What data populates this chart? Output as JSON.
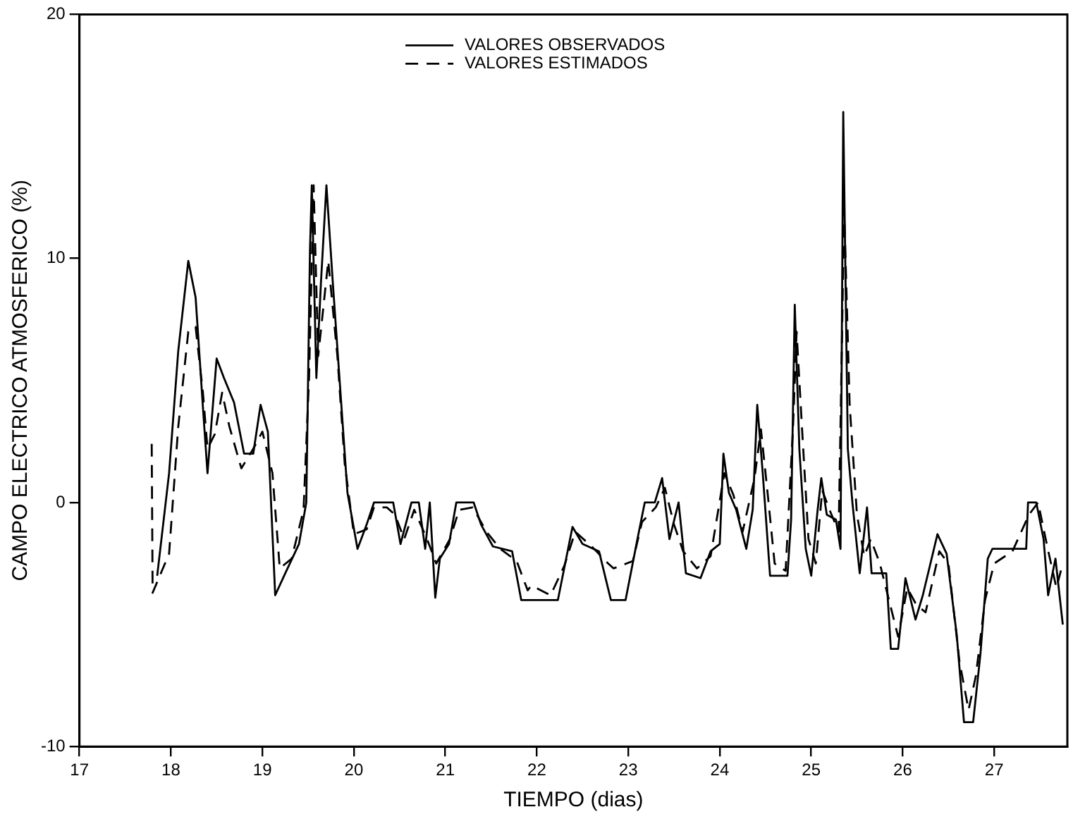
{
  "chart_data": {
    "type": "line",
    "xlabel": "TIEMPO (dias)",
    "ylabel": "CAMPO ELECTRICO ATMOSFERICO (%)",
    "xlim": [
      17,
      27.8
    ],
    "xticks": [
      17,
      18,
      19,
      20,
      21,
      22,
      23,
      24,
      25,
      26,
      27
    ],
    "ylim": [
      -10,
      20
    ],
    "yticks": [
      -10,
      0,
      10,
      20
    ],
    "grid": false,
    "legend": "top",
    "marker": "none",
    "series": [
      {
        "name": "VALORES OBSERVADOS",
        "color": "#000000",
        "line_style": "solid",
        "x": [
          17.85,
          17.98,
          18.08,
          18.19,
          18.27,
          18.35,
          18.4,
          18.44,
          18.5,
          18.58,
          18.69,
          18.8,
          18.9,
          18.98,
          19.06,
          19.14,
          19.25,
          19.4,
          19.48,
          19.52,
          19.54,
          19.59,
          19.64,
          19.7,
          19.77,
          19.85,
          19.93,
          20.04,
          20.14,
          20.22,
          20.43,
          20.51,
          20.63,
          20.71,
          20.78,
          20.83,
          20.89,
          20.94,
          21.04,
          21.12,
          21.31,
          21.39,
          21.52,
          21.73,
          21.83,
          22.23,
          22.39,
          22.5,
          22.68,
          22.81,
          22.97,
          23.1,
          23.18,
          23.29,
          23.37,
          23.45,
          23.55,
          23.63,
          23.79,
          23.9,
          24.0,
          24.04,
          24.1,
          24.18,
          24.29,
          24.36,
          24.41,
          24.47,
          24.55,
          24.74,
          24.78,
          24.82,
          24.87,
          24.94,
          25.0,
          25.07,
          25.11,
          25.17,
          25.27,
          25.32,
          25.35,
          25.4,
          25.45,
          25.53,
          25.61,
          25.66,
          25.82,
          25.87,
          25.95,
          26.03,
          26.14,
          26.22,
          26.38,
          26.48,
          26.59,
          26.67,
          26.77,
          26.85,
          26.93,
          26.98,
          27.35,
          27.37,
          27.46,
          27.54,
          27.59,
          27.67,
          27.75
        ],
        "values": [
          -3.0,
          1.2,
          6.2,
          9.9,
          8.4,
          3.9,
          1.2,
          3.1,
          5.9,
          5.1,
          4.1,
          2.0,
          2.0,
          4.0,
          2.9,
          -3.8,
          -2.9,
          -1.7,
          0,
          10.3,
          13.0,
          5.1,
          9.0,
          13.0,
          9.0,
          4.7,
          0.4,
          -1.9,
          -0.9,
          0,
          0,
          -1.7,
          0,
          0,
          -1.9,
          0,
          -3.9,
          -2.3,
          -1.7,
          0,
          0,
          -0.9,
          -1.8,
          -2.0,
          -4.0,
          -4.0,
          -1.0,
          -1.7,
          -2.0,
          -4.0,
          -4.0,
          -1.5,
          0,
          0,
          1.0,
          -1.5,
          0,
          -2.9,
          -3.1,
          -2.0,
          -1.7,
          2.0,
          0.4,
          -0.3,
          -1.9,
          -0.3,
          4.0,
          1.2,
          -3.0,
          -3.0,
          -0.7,
          8.1,
          2.2,
          -1.9,
          -3.0,
          -0.3,
          1.0,
          -0.5,
          -0.7,
          -1.9,
          16.0,
          2.2,
          0,
          -2.9,
          -0.2,
          -2.9,
          -2.9,
          -6.0,
          -6.0,
          -3.1,
          -4.8,
          -3.8,
          -1.3,
          -2.1,
          -5.4,
          -9.0,
          -9.0,
          -6.2,
          -2.3,
          -1.9,
          -1.9,
          0,
          0,
          -1.5,
          -3.8,
          -2.3,
          -5.0
        ]
      },
      {
        "name": "VALORES ESTIMADOS",
        "color": "#000000",
        "line_style": "dashed",
        "x": [
          17.79,
          17.8,
          17.98,
          18.08,
          18.19,
          18.27,
          18.35,
          18.4,
          18.48,
          18.56,
          18.64,
          18.77,
          18.9,
          19.0,
          19.11,
          19.19,
          19.32,
          19.45,
          19.51,
          19.56,
          19.61,
          19.72,
          19.82,
          19.9,
          20.0,
          20.14,
          20.22,
          20.36,
          20.45,
          20.55,
          20.66,
          20.8,
          20.9,
          21.05,
          21.15,
          21.3,
          21.45,
          21.6,
          21.78,
          21.9,
          21.94,
          22.15,
          22.3,
          22.42,
          22.6,
          22.78,
          22.84,
          23.05,
          23.15,
          23.3,
          23.4,
          23.5,
          23.6,
          23.75,
          23.9,
          24.05,
          24.15,
          24.25,
          24.38,
          24.45,
          24.52,
          24.6,
          24.72,
          24.8,
          24.84,
          24.9,
          24.97,
          25.05,
          25.12,
          25.2,
          25.3,
          25.36,
          25.42,
          25.5,
          25.58,
          25.65,
          25.75,
          25.85,
          25.95,
          26.05,
          26.15,
          26.25,
          26.4,
          26.5,
          26.62,
          26.72,
          26.8,
          26.9,
          27.0,
          27.2,
          27.38,
          27.48,
          27.58,
          27.68,
          27.75
        ],
        "values": [
          2.4,
          -3.7,
          -2.1,
          3.1,
          7.0,
          7.2,
          4.5,
          2.2,
          2.8,
          4.5,
          3.1,
          1.4,
          2.2,
          2.9,
          1.2,
          -2.7,
          -2.3,
          -0.3,
          5.1,
          13.0,
          6.0,
          9.9,
          6.0,
          1.6,
          -1.3,
          -1.1,
          -0.2,
          -0.2,
          -0.5,
          -1.5,
          -0.3,
          -1.5,
          -2.5,
          -1.5,
          -0.3,
          -0.2,
          -1.2,
          -1.9,
          -2.4,
          -3.6,
          -3.4,
          -3.8,
          -2.6,
          -1.2,
          -1.8,
          -2.5,
          -2.7,
          -2.4,
          -0.8,
          -0.2,
          0.6,
          -0.9,
          -2.0,
          -2.7,
          -2.2,
          1.2,
          0.3,
          -1.2,
          1.0,
          3.0,
          0.5,
          -2.5,
          -2.8,
          3.0,
          7.0,
          3.0,
          -1.5,
          -2.5,
          0.5,
          -0.3,
          -1.2,
          12.0,
          4.0,
          -0.5,
          -2.2,
          -1.5,
          -2.5,
          -4.0,
          -5.5,
          -3.5,
          -4.2,
          -4.5,
          -2.0,
          -2.5,
          -6.5,
          -8.5,
          -7.1,
          -4.0,
          -2.5,
          -2.0,
          -0.5,
          0,
          -1.8,
          -3.5,
          -2.5
        ]
      }
    ]
  }
}
